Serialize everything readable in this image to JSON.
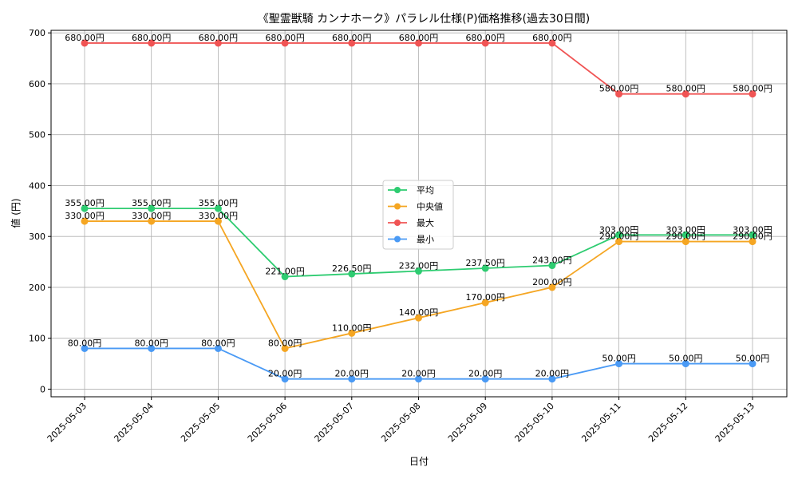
{
  "chart_data": {
    "type": "line",
    "title": "《聖霊獣騎 カンナホーク》パラレル仕様(P)価格推移(過去30日間)",
    "xlabel": "日付",
    "ylabel": "値 (円)",
    "ylim": [
      -15,
      705
    ],
    "yticks": [
      0,
      100,
      200,
      300,
      400,
      500,
      600,
      700
    ],
    "grid": true,
    "legend_position": "center",
    "label_suffix": "円",
    "categories": [
      "2025-05-03",
      "2025-05-04",
      "2025-05-05",
      "2025-05-06",
      "2025-05-07",
      "2025-05-08",
      "2025-05-09",
      "2025-05-10",
      "2025-05-11",
      "2025-05-12",
      "2025-05-13"
    ],
    "series": [
      {
        "name": "平均",
        "color": "#2ecc71",
        "values": [
          355,
          355,
          355,
          221,
          226.5,
          232,
          237.5,
          243,
          303,
          303,
          303
        ]
      },
      {
        "name": "中央値",
        "color": "#f5a623",
        "values": [
          330,
          330,
          330,
          80,
          110,
          140,
          170,
          200,
          290,
          290,
          290
        ]
      },
      {
        "name": "最大",
        "color": "#f05454",
        "values": [
          680,
          680,
          680,
          680,
          680,
          680,
          680,
          680,
          580,
          580,
          580
        ]
      },
      {
        "name": "最小",
        "color": "#4a9af5",
        "values": [
          80,
          80,
          80,
          20,
          20,
          20,
          20,
          20,
          50,
          50,
          50
        ]
      }
    ]
  }
}
